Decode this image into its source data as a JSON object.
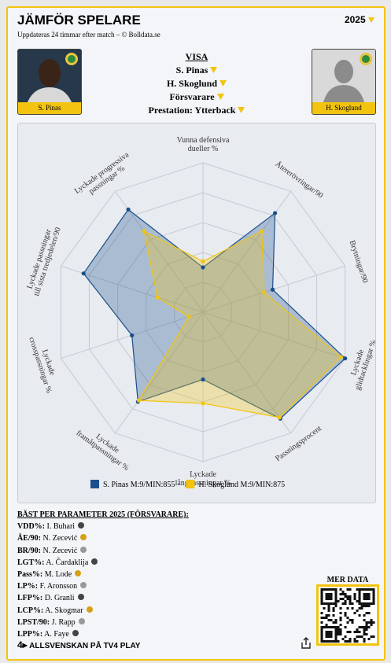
{
  "header": {
    "title": "JÄMFÖR SPELARE",
    "subtitle": "Uppdateras 24 timmar efter match – © Bolldata.se",
    "season": "2025"
  },
  "players": [
    {
      "name": "S. Pinas"
    },
    {
      "name": "H. Skoglund"
    }
  ],
  "visa": {
    "title": "VISA",
    "items": [
      "S. Pinas",
      "H. Skoglund",
      "Försvarare",
      "Prestation: Ytterback"
    ]
  },
  "chart_data": {
    "type": "radar",
    "axes": [
      [
        "Vunna defensiva",
        "dueller %"
      ],
      [
        "Återerövringar/90"
      ],
      [
        "Brytningar/90"
      ],
      [
        "Lyckade",
        "glidtacklingar %"
      ],
      [
        "Passningsprocent"
      ],
      [
        "Lyckade",
        "långpassningar %"
      ],
      [
        "Lyckade",
        "framåtpassningar %"
      ],
      [
        "Lyckade",
        "crosspassningar %"
      ],
      [
        "Lyckade passningar",
        "till sista tredjedelen/90"
      ],
      [
        "Lyckade progressiva",
        "passningar %"
      ]
    ],
    "rlim": [
      0,
      100
    ],
    "rticks": [
      20,
      40,
      60,
      80,
      100
    ],
    "grid": true,
    "series": [
      {
        "name": "S. Pinas M:9/MIN:855",
        "color": "#1a4f8b",
        "values": [
          30,
          82,
          49,
          100,
          88,
          45,
          74,
          50,
          84,
          85
        ]
      },
      {
        "name": "H. Skoglund M:9/MIN:875",
        "color": "#f2c40f",
        "values": [
          34,
          67,
          43,
          97,
          87,
          61,
          73,
          10,
          32,
          67
        ]
      }
    ]
  },
  "best": {
    "title": "BÄST PER PARAMETER 2025 (FÖRSVARARE):",
    "items": [
      {
        "key": "VDD%:",
        "name": "I. Buhari"
      },
      {
        "key": "ÅE/90:",
        "name": "N. Zecević"
      },
      {
        "key": "BR/90:",
        "name": "N. Zecević"
      },
      {
        "key": "LGT%:",
        "name": "A. Čardaklija"
      },
      {
        "key": "Pass%:",
        "name": "M. Lode"
      },
      {
        "key": "LP%:",
        "name": "F. Aronsson"
      },
      {
        "key": "LFP%:",
        "name": "D. Granli"
      },
      {
        "key": "LCP%:",
        "name": "A. Skogmar"
      },
      {
        "key": "LPST/90:",
        "name": "J. Rapp"
      },
      {
        "key": "LPP%:",
        "name": "A. Faye"
      }
    ]
  },
  "more_data": "MER DATA",
  "footer": "ALLSVENSKAN PÅ TV4 PLAY"
}
